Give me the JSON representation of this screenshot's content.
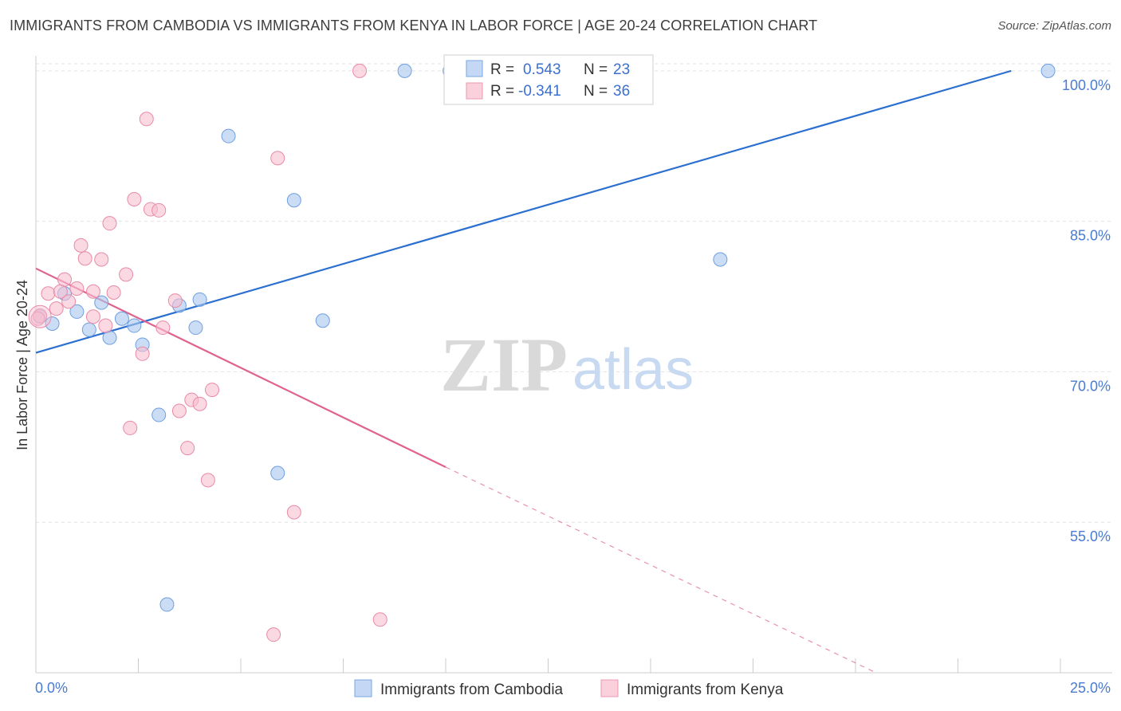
{
  "chart_data": {
    "type": "scatter",
    "title": "IMMIGRANTS FROM CAMBODIA VS IMMIGRANTS FROM KENYA IN LABOR FORCE | AGE 20-24 CORRELATION CHART",
    "source": "Source: ZipAtlas.com",
    "ylabel": "In Labor Force | Age 20-24",
    "xlim": [
      0,
      25
    ],
    "ylim": [
      40,
      101.5
    ],
    "x_tick_labels": [
      "0.0%",
      "25.0%"
    ],
    "y_ticks": [
      55,
      70,
      85,
      100
    ],
    "y_tick_labels": [
      "55.0%",
      "70.0%",
      "85.0%",
      "100.0%"
    ],
    "grid": true,
    "watermark": {
      "zip": "ZIP",
      "atlas": "atlas"
    },
    "legend_stats": [
      {
        "r_label": "R = ",
        "r_value": "0.543",
        "n_label": "N = ",
        "n_value": "23"
      },
      {
        "r_label": "R = ",
        "r_value": "-0.341",
        "n_label": "N = ",
        "n_value": "36"
      }
    ],
    "series": [
      {
        "name": "Immigrants from Cambodia",
        "color": "#a9c6ee",
        "edge": "#6f9fe0",
        "trend_color": "#2b6fd0",
        "trend": {
          "x": [
            0,
            23.8
          ],
          "y": [
            71.9,
            100.0
          ],
          "dashed_to": null
        },
        "points": [
          [
            0.1,
            75.5
          ],
          [
            0.4,
            74.8
          ],
          [
            0.7,
            77.8
          ],
          [
            1.0,
            76.0
          ],
          [
            1.3,
            74.2
          ],
          [
            1.6,
            76.9
          ],
          [
            1.8,
            73.4
          ],
          [
            2.1,
            75.3
          ],
          [
            2.4,
            74.6
          ],
          [
            2.6,
            72.7
          ],
          [
            3.0,
            65.7
          ],
          [
            3.2,
            46.8
          ],
          [
            3.5,
            76.6
          ],
          [
            3.9,
            74.4
          ],
          [
            4.0,
            77.2
          ],
          [
            4.7,
            93.5
          ],
          [
            5.9,
            59.9
          ],
          [
            6.3,
            87.1
          ],
          [
            7.0,
            75.1
          ],
          [
            9.0,
            100.0
          ],
          [
            10.1,
            100.0
          ],
          [
            16.7,
            81.2
          ],
          [
            24.7,
            100.0
          ]
        ]
      },
      {
        "name": "Immigrants from Kenya",
        "color": "#f6bfd0",
        "edge": "#e98aa7",
        "trend_color": "#e0628f",
        "trend": {
          "x": [
            0,
            10.0
          ],
          "y": [
            80.3,
            60.5
          ],
          "dashed_to": [
            20.5,
            40.0
          ]
        },
        "points": [
          [
            0.1,
            75.6
          ],
          [
            0.3,
            77.8
          ],
          [
            0.5,
            76.3
          ],
          [
            0.6,
            78.0
          ],
          [
            0.7,
            79.2
          ],
          [
            0.8,
            77.0
          ],
          [
            1.0,
            78.3
          ],
          [
            1.1,
            82.6
          ],
          [
            1.2,
            81.3
          ],
          [
            1.4,
            78.0
          ],
          [
            1.4,
            75.5
          ],
          [
            1.6,
            81.2
          ],
          [
            1.7,
            74.6
          ],
          [
            1.8,
            84.8
          ],
          [
            1.9,
            77.9
          ],
          [
            2.2,
            79.7
          ],
          [
            2.3,
            64.4
          ],
          [
            2.4,
            87.2
          ],
          [
            2.6,
            71.8
          ],
          [
            2.7,
            95.2
          ],
          [
            2.8,
            86.2
          ],
          [
            3.0,
            86.1
          ],
          [
            3.1,
            74.4
          ],
          [
            3.4,
            77.1
          ],
          [
            3.5,
            66.1
          ],
          [
            3.7,
            62.4
          ],
          [
            3.8,
            67.2
          ],
          [
            4.0,
            66.8
          ],
          [
            4.2,
            59.2
          ],
          [
            4.3,
            68.2
          ],
          [
            5.8,
            43.8
          ],
          [
            5.9,
            91.3
          ],
          [
            6.3,
            56.0
          ],
          [
            7.9,
            100.0
          ],
          [
            8.4,
            45.3
          ],
          [
            0.05,
            75.3
          ]
        ]
      }
    ]
  }
}
